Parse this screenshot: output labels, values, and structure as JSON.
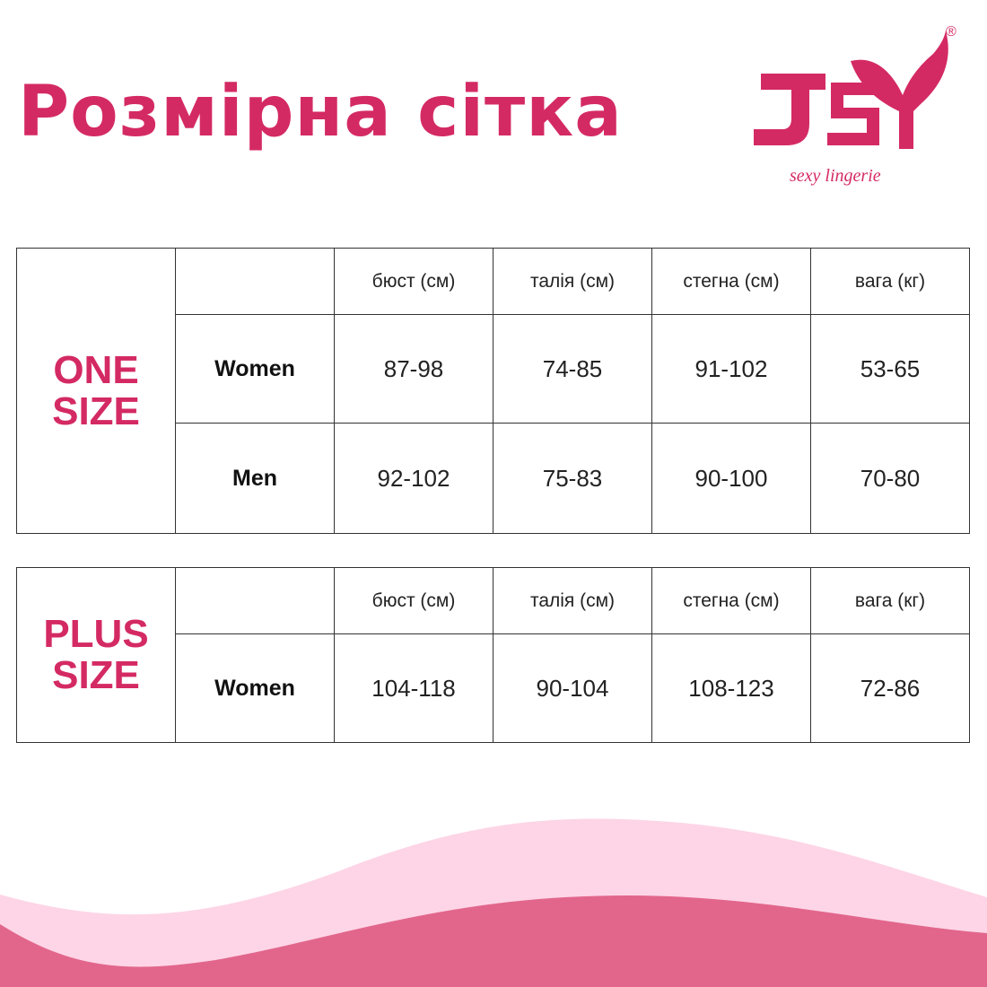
{
  "title": "Розмірна сітка",
  "logo": {
    "text": "JSY",
    "tagline": "sexy lingerie",
    "mark": "®",
    "color": "#d42a63"
  },
  "colors": {
    "accent": "#d42a63",
    "wave_light": "#fdd5e6",
    "wave_dark": "#e2668c"
  },
  "tables": [
    {
      "group_label": [
        "ONE",
        "SIZE"
      ],
      "headers": [
        "бюст (см)",
        "талія (см)",
        "стегна (см)",
        "вага (кг)"
      ],
      "rows": [
        {
          "label": "Women",
          "values": [
            "87-98",
            "74-85",
            "91-102",
            "53-65"
          ]
        },
        {
          "label": "Men",
          "values": [
            "92-102",
            "75-83",
            "90-100",
            "70-80"
          ]
        }
      ]
    },
    {
      "group_label": [
        "PLUS",
        "SIZE"
      ],
      "headers": [
        "бюст (см)",
        "талія (см)",
        "стегна (см)",
        "вага (кг)"
      ],
      "rows": [
        {
          "label": "Women",
          "values": [
            "104-118",
            "90-104",
            "108-123",
            "72-86"
          ]
        }
      ]
    }
  ]
}
